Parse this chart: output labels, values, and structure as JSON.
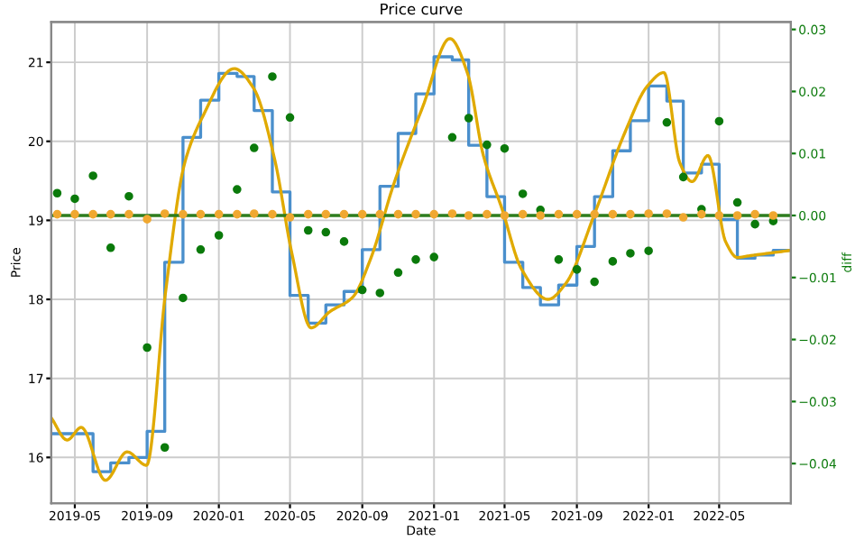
{
  "chart_data": {
    "type": "line",
    "title": "Price curve",
    "xlabel": "Date",
    "ylabel": "Price",
    "y2label": "diff",
    "xlim": [
      "2019-03-22",
      "2022-08-31"
    ],
    "xticks": [
      {
        "value": "2019-05-01",
        "label": "2019-05"
      },
      {
        "value": "2019-09-01",
        "label": "2019-09"
      },
      {
        "value": "2020-01-01",
        "label": "2020-01"
      },
      {
        "value": "2020-05-01",
        "label": "2020-05"
      },
      {
        "value": "2020-09-01",
        "label": "2020-09"
      },
      {
        "value": "2021-01-01",
        "label": "2021-01"
      },
      {
        "value": "2021-05-01",
        "label": "2021-05"
      },
      {
        "value": "2021-09-01",
        "label": "2021-09"
      },
      {
        "value": "2022-01-01",
        "label": "2022-01"
      },
      {
        "value": "2022-05-01",
        "label": "2022-05"
      }
    ],
    "ylim": [
      15.42,
      21.51
    ],
    "yticks": [
      16,
      17,
      18,
      19,
      20,
      21
    ],
    "y2lim": [
      -0.0464,
      0.0312
    ],
    "y2ticks": [
      {
        "value": -0.04,
        "label": "−0.04"
      },
      {
        "value": -0.03,
        "label": "−0.03"
      },
      {
        "value": -0.02,
        "label": "−0.02"
      },
      {
        "value": -0.01,
        "label": "−0.01"
      },
      {
        "value": 0,
        "label": "0.00"
      },
      {
        "value": 0.01,
        "label": "0.01"
      },
      {
        "value": 0.02,
        "label": "0.02"
      },
      {
        "value": 0.03,
        "label": "0.03"
      }
    ],
    "grid": true,
    "legend": false,
    "ref_lines": [
      {
        "axis": "y2",
        "value": 0,
        "label": null,
        "color": "#2e7d1e"
      }
    ],
    "series": [
      {
        "type": "step",
        "color": "#4a8fcc",
        "x": [
          "2019-03-22",
          "2019-05-01",
          "2019-06-01",
          "2019-07-01",
          "2019-08-01",
          "2019-09-01",
          "2019-10-01",
          "2019-11-01",
          "2019-12-01",
          "2020-01-01",
          "2020-02-01",
          "2020-03-01",
          "2020-04-01",
          "2020-05-01",
          "2020-06-01",
          "2020-07-01",
          "2020-08-01",
          "2020-09-01",
          "2020-10-01",
          "2020-11-01",
          "2020-12-01",
          "2021-01-01",
          "2021-02-01",
          "2021-03-01",
          "2021-04-01",
          "2021-05-01",
          "2021-06-01",
          "2021-07-01",
          "2021-08-01",
          "2021-09-01",
          "2021-10-01",
          "2021-11-01",
          "2021-12-01",
          "2022-01-01",
          "2022-02-01",
          "2022-03-01",
          "2022-04-01",
          "2022-05-01",
          "2022-06-01",
          "2022-07-01",
          "2022-08-01",
          "2022-08-31"
        ],
        "values": [
          16.3,
          16.3,
          15.82,
          15.93,
          16.0,
          16.33,
          18.47,
          20.05,
          20.52,
          20.86,
          20.82,
          20.39,
          19.36,
          18.05,
          17.7,
          17.93,
          18.1,
          18.63,
          19.43,
          20.1,
          20.6,
          21.07,
          21.03,
          19.95,
          19.3,
          18.47,
          18.15,
          17.93,
          18.18,
          18.67,
          19.3,
          19.88,
          20.26,
          20.7,
          20.51,
          19.6,
          19.71,
          19.01,
          18.52,
          18.56,
          18.62,
          18.62
        ]
      },
      {
        "color": "#e0aa00",
        "x": [
          "2019-03-22",
          "2019-04-18",
          "2019-05-12",
          "2019-06-22",
          "2019-07-29",
          "2019-08-31",
          "2019-10-02",
          "2019-11-03",
          "2019-12-03",
          "2020-01-27",
          "2020-03-01",
          "2020-04-05",
          "2020-05-04",
          "2020-06-06",
          "2020-07-07",
          "2020-08-16",
          "2020-09-15",
          "2020-10-25",
          "2020-12-13",
          "2021-01-28",
          "2021-02-27",
          "2021-03-26",
          "2021-04-26",
          "2021-05-30",
          "2021-07-14",
          "2021-08-13",
          "2021-10-02",
          "2021-11-21",
          "2021-12-30",
          "2022-01-27",
          "2022-02-23",
          "2022-03-16",
          "2022-04-12",
          "2022-05-12",
          "2022-06-01",
          "2022-06-20",
          "2022-08-30"
        ],
        "values": [
          16.5,
          16.22,
          16.38,
          15.71,
          16.07,
          15.9,
          18.07,
          19.7,
          20.29,
          20.92,
          20.66,
          19.77,
          18.59,
          17.64,
          17.84,
          18.03,
          18.51,
          19.47,
          20.44,
          21.3,
          20.86,
          19.82,
          19.16,
          18.38,
          18.0,
          18.2,
          19.1,
          20.1,
          20.7,
          20.87,
          19.73,
          19.49,
          19.82,
          18.73,
          18.53,
          18.55,
          18.62
        ]
      },
      {
        "type": "scatter",
        "axis": "y2",
        "color": "#0b7a0b",
        "x": [
          "2019-04-01",
          "2019-05-01",
          "2019-06-01",
          "2019-07-01",
          "2019-08-01",
          "2019-09-01",
          "2019-10-01",
          "2019-11-01",
          "2019-12-01",
          "2020-01-01",
          "2020-02-01",
          "2020-03-01",
          "2020-04-01",
          "2020-05-01",
          "2020-06-01",
          "2020-07-01",
          "2020-08-01",
          "2020-09-01",
          "2020-10-01",
          "2020-11-01",
          "2020-12-01",
          "2021-01-01",
          "2021-02-01",
          "2021-03-01",
          "2021-04-01",
          "2021-05-01",
          "2021-06-01",
          "2021-07-01",
          "2021-08-01",
          "2021-09-01",
          "2021-10-01",
          "2021-11-01",
          "2021-12-01",
          "2022-01-01",
          "2022-02-01",
          "2022-03-01",
          "2022-04-01",
          "2022-05-01",
          "2022-06-01",
          "2022-07-01",
          "2022-08-01"
        ],
        "values": [
          0.0036,
          0.0027,
          0.0064,
          -0.0052,
          0.0031,
          -0.0213,
          -0.0374,
          -0.0133,
          -0.0055,
          -0.0032,
          0.0042,
          0.0109,
          0.0224,
          0.0158,
          -0.0024,
          -0.0027,
          -0.0042,
          -0.012,
          -0.0125,
          -0.0092,
          -0.0071,
          -0.0067,
          0.0126,
          0.0157,
          0.0114,
          0.0108,
          0.0035,
          0.0009,
          -0.0071,
          -0.0087,
          -0.0107,
          -0.0074,
          -0.0061,
          -0.0057,
          0.015,
          0.0062,
          0.001,
          0.0152,
          0.0021,
          -0.0014,
          -0.0009
        ]
      },
      {
        "type": "scatter",
        "axis": "y2",
        "color": "#f0a830",
        "x": [
          "2019-04-01",
          "2019-05-01",
          "2019-06-01",
          "2019-07-01",
          "2019-08-01",
          "2019-09-01",
          "2019-10-01",
          "2019-11-01",
          "2019-12-01",
          "2020-01-01",
          "2020-02-01",
          "2020-03-01",
          "2020-04-01",
          "2020-05-01",
          "2020-06-01",
          "2020-07-01",
          "2020-08-01",
          "2020-09-01",
          "2020-10-01",
          "2020-11-01",
          "2020-12-01",
          "2021-01-01",
          "2021-02-01",
          "2021-03-01",
          "2021-04-01",
          "2021-05-01",
          "2021-06-01",
          "2021-07-01",
          "2021-08-01",
          "2021-09-01",
          "2021-10-01",
          "2021-11-01",
          "2021-12-01",
          "2022-01-01",
          "2022-02-01",
          "2022-03-01",
          "2022-04-01",
          "2022-05-01",
          "2022-06-01",
          "2022-07-01",
          "2022-08-01"
        ],
        "values": [
          0.0002,
          0.0002,
          0.0002,
          0.0002,
          0.0002,
          -0.0006,
          0.0003,
          0.0002,
          0.0002,
          0.0002,
          0.0002,
          0.0003,
          0.0002,
          -0.0003,
          0.0002,
          0.0002,
          0.0002,
          0.0002,
          0.0002,
          0.0002,
          0.0002,
          0.0002,
          0.0003,
          0.0,
          0.0002,
          0.0,
          0.0002,
          0.0,
          0.0002,
          0.0002,
          0.0002,
          0.0002,
          0.0002,
          0.0003,
          0.0003,
          -0.0003,
          0.0002,
          0.0,
          0.0,
          0.0002,
          0.0
        ]
      }
    ]
  }
}
